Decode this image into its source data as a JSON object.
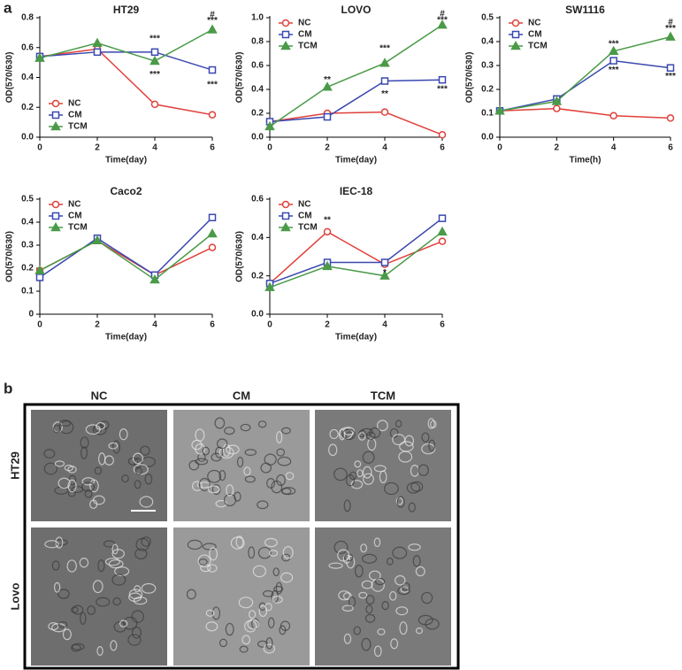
{
  "panel_labels": [
    "a",
    "b"
  ],
  "chart_data": [
    {
      "type": "line",
      "title": "HT29",
      "xlabel": "Time(day)",
      "ylabel": "OD(570/630)",
      "x": [
        0,
        2,
        4,
        6
      ],
      "xlim": [
        0,
        6
      ],
      "xticks": [
        0,
        2,
        4,
        6
      ],
      "ylim": [
        0,
        0.8
      ],
      "yticks": [
        {
          "value": 0,
          "label": "0.0"
        },
        0.2,
        0.4,
        0.6,
        0.8
      ],
      "legend": "lower left",
      "series": [
        {
          "name": "NC",
          "color": "#e0403a",
          "marker": "circle",
          "values": [
            0.54,
            0.59,
            0.22,
            0.15
          ]
        },
        {
          "name": "CM",
          "color": "#3a48b0",
          "marker": "square",
          "values": [
            0.54,
            0.57,
            0.57,
            0.45
          ]
        },
        {
          "name": "TCM",
          "color": "#4a9a48",
          "marker": "triangle",
          "values": [
            0.53,
            0.63,
            0.51,
            0.72
          ]
        }
      ],
      "annotations": [
        {
          "text": "***",
          "x": 4,
          "y": 0.66
        },
        {
          "text": "***",
          "x": 4,
          "y": 0.42
        },
        {
          "text": "#",
          "x": 6,
          "y": 0.82
        },
        {
          "text": "***",
          "x": 6,
          "y": 0.78
        },
        {
          "text": "***",
          "x": 6,
          "y": 0.35
        }
      ]
    },
    {
      "type": "line",
      "title": "LOVO",
      "xlabel": "Time(day)",
      "ylabel": "OD(570/630)",
      "x": [
        0,
        2,
        4,
        6
      ],
      "xlim": [
        0,
        6
      ],
      "xticks": [
        0,
        2,
        4,
        6
      ],
      "ylim": [
        0,
        1
      ],
      "yticks": [
        {
          "value": 0,
          "label": "0.0"
        },
        0.2,
        0.4,
        0.6,
        0.8,
        {
          "value": 1,
          "label": "1.0"
        }
      ],
      "legend": "upper left",
      "series": [
        {
          "name": "NC",
          "color": "#e0403a",
          "marker": "circle",
          "values": [
            0.13,
            0.2,
            0.21,
            0.02
          ]
        },
        {
          "name": "CM",
          "color": "#3a48b0",
          "marker": "square",
          "values": [
            0.13,
            0.17,
            0.47,
            0.48
          ]
        },
        {
          "name": "TCM",
          "color": "#4a9a48",
          "marker": "triangle",
          "values": [
            0.09,
            0.42,
            0.62,
            0.94
          ]
        }
      ],
      "annotations": [
        {
          "text": "**",
          "x": 2,
          "y": 0.48
        },
        {
          "text": "***",
          "x": 4,
          "y": 0.74
        },
        {
          "text": "**",
          "x": 4,
          "y": 0.36
        },
        {
          "text": "#",
          "x": 6,
          "y": 1.03
        },
        {
          "text": "***",
          "x": 6,
          "y": 0.98
        },
        {
          "text": "***",
          "x": 6,
          "y": 0.4
        }
      ]
    },
    {
      "type": "line",
      "title": "SW1116",
      "xlabel": "Time(h)",
      "ylabel": "OD(570/630)",
      "x": [
        0,
        2,
        4,
        6
      ],
      "xlim": [
        0,
        6
      ],
      "xticks": [
        0,
        2,
        4,
        6
      ],
      "ylim": [
        0,
        0.5
      ],
      "yticks": [
        {
          "value": 0,
          "label": "0.0"
        },
        0.1,
        0.2,
        0.3,
        0.4,
        0.5
      ],
      "legend": "upper left",
      "series": [
        {
          "name": "NC",
          "color": "#e0403a",
          "marker": "circle",
          "values": [
            0.11,
            0.12,
            0.09,
            0.08
          ]
        },
        {
          "name": "CM",
          "color": "#3a48b0",
          "marker": "square",
          "values": [
            0.11,
            0.16,
            0.32,
            0.29
          ]
        },
        {
          "name": "TCM",
          "color": "#4a9a48",
          "marker": "triangle",
          "values": [
            0.11,
            0.15,
            0.36,
            0.42
          ]
        }
      ],
      "annotations": [
        {
          "text": "***",
          "x": 4,
          "y": 0.39
        },
        {
          "text": "***",
          "x": 4,
          "y": 0.28
        },
        {
          "text": "#",
          "x": 6,
          "y": 0.48
        },
        {
          "text": "***",
          "x": 6,
          "y": 0.455
        },
        {
          "text": "***",
          "x": 6,
          "y": 0.255
        }
      ]
    },
    {
      "type": "line",
      "title": "Caco2",
      "xlabel": "Time(day)",
      "ylabel": "OD(570/630)",
      "x": [
        0,
        2,
        4,
        6
      ],
      "xlim": [
        0,
        6
      ],
      "xticks": [
        0,
        2,
        4,
        6
      ],
      "ylim": [
        0,
        0.5
      ],
      "yticks": [
        0,
        0.1,
        0.2,
        0.3,
        0.4,
        0.5
      ],
      "legend": "upper left",
      "series": [
        {
          "name": "NC",
          "color": "#e0403a",
          "marker": "circle",
          "values": [
            0.19,
            0.32,
            0.17,
            0.29
          ]
        },
        {
          "name": "CM",
          "color": "#3a48b0",
          "marker": "square",
          "values": [
            0.16,
            0.33,
            0.17,
            0.42
          ]
        },
        {
          "name": "TCM",
          "color": "#4a9a48",
          "marker": "triangle",
          "values": [
            0.19,
            0.32,
            0.15,
            0.35
          ]
        }
      ],
      "annotations": []
    },
    {
      "type": "line",
      "title": "IEC-18",
      "xlabel": "Time(day)",
      "ylabel": "OD(570/630)",
      "x": [
        0,
        2,
        4,
        6
      ],
      "xlim": [
        0,
        6
      ],
      "xticks": [
        0,
        2,
        4,
        6
      ],
      "ylim": [
        0,
        0.6
      ],
      "yticks": [
        {
          "value": 0,
          "label": "0.0"
        },
        0.2,
        0.4,
        0.6
      ],
      "legend": "upper left",
      "series": [
        {
          "name": "NC",
          "color": "#e0403a",
          "marker": "circle",
          "values": [
            0.16,
            0.43,
            0.26,
            0.38
          ]
        },
        {
          "name": "CM",
          "color": "#3a48b0",
          "marker": "square",
          "values": [
            0.16,
            0.27,
            0.27,
            0.5
          ]
        },
        {
          "name": "TCM",
          "color": "#4a9a48",
          "marker": "triangle",
          "values": [
            0.14,
            0.25,
            0.2,
            0.43
          ]
        }
      ],
      "annotations": [
        {
          "text": "**",
          "x": 2,
          "y": 0.49
        },
        {
          "text": "*",
          "x": 4,
          "y": 0.215
        }
      ]
    }
  ],
  "micrographs": {
    "columns": [
      "NC",
      "CM",
      "TCM"
    ],
    "rows": [
      "HT29",
      "Lovo"
    ]
  }
}
